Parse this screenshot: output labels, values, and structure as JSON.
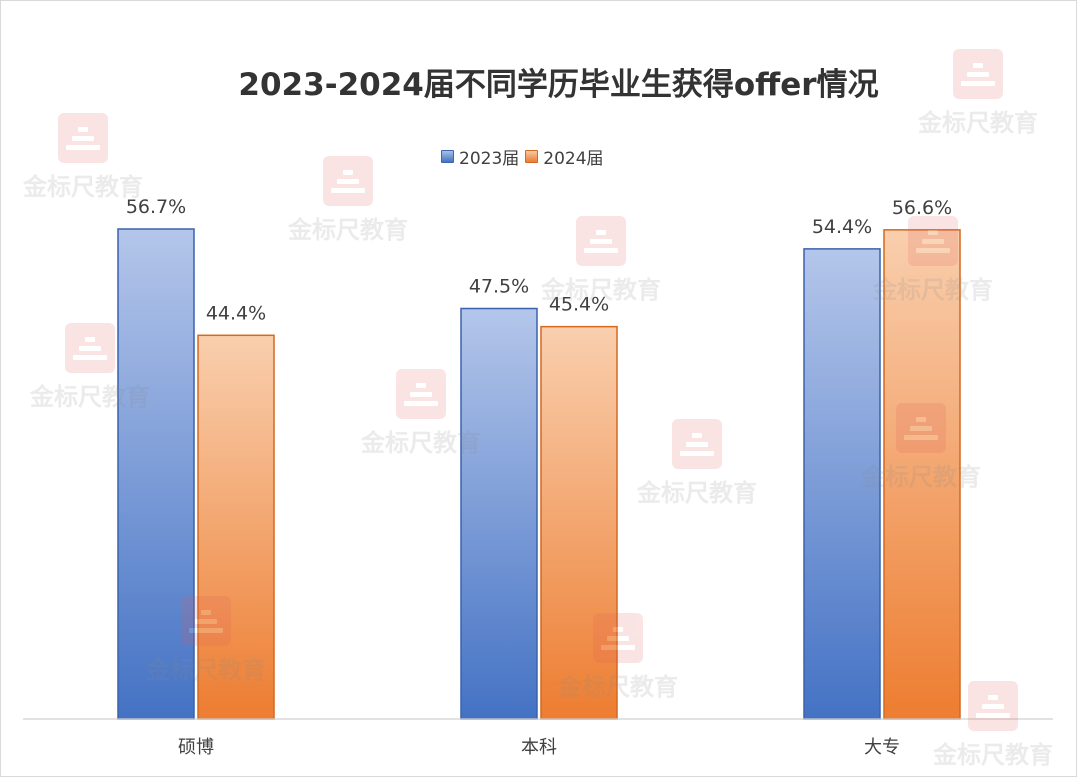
{
  "chart_data": {
    "type": "bar",
    "title": "2023-2024届不同学历毕业生获得offer情况",
    "categories": [
      "硕博",
      "本科",
      "大专"
    ],
    "series": [
      {
        "name": "2023届",
        "values": [
          56.7,
          47.5,
          54.4
        ],
        "labels": [
          "56.7%",
          "47.5%",
          "54.4%"
        ],
        "color": "#4472c4"
      },
      {
        "name": "2024届",
        "values": [
          44.4,
          45.4,
          56.6
        ],
        "labels": [
          "44.4%",
          "45.4%",
          "56.6%"
        ],
        "color": "#ed7d31"
      }
    ],
    "unit": "%",
    "ylim": [
      0,
      56.7
    ],
    "legend_position": "top",
    "grid": false
  },
  "watermark": {
    "text": "金标尺教育",
    "icon": "pyramid-logo-icon"
  }
}
